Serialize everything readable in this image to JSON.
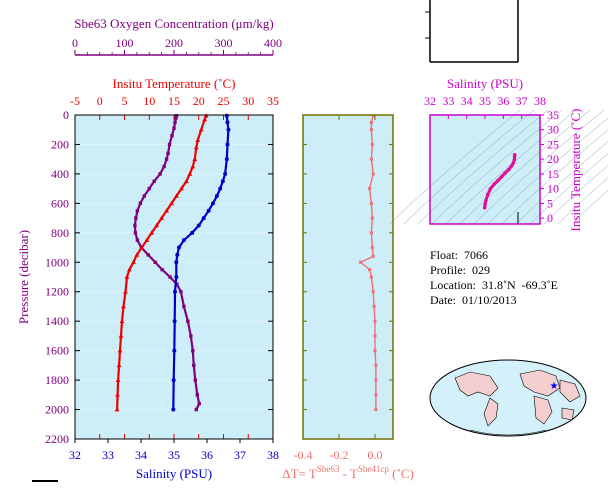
{
  "colors": {
    "oxygen": "#800080",
    "temperature": "#ee0000",
    "salinity": "#0000cc",
    "delta": "#f07070",
    "ts": "#e0109a",
    "panel_bg": "#cdeef8",
    "delta_axis": "#707000",
    "ts_axis": "#cc00cc"
  },
  "profile_axes": {
    "oxygen": {
      "title": "Sbe63 Oxygen Concentration (μm/kg)",
      "range": [
        0,
        400
      ],
      "ticks": [
        "0",
        "100",
        "200",
        "300",
        "400"
      ]
    },
    "temperature": {
      "title": "Insitu Temperature (˚C)",
      "range": [
        -5,
        35
      ],
      "ticks": [
        "-5",
        "0",
        "5",
        "10",
        "15",
        "20",
        "25",
        "30",
        "35"
      ]
    },
    "salinity": {
      "title": "Salinity (PSU)",
      "range": [
        32,
        38
      ],
      "ticks": [
        "32",
        "33",
        "34",
        "35",
        "36",
        "37",
        "38"
      ]
    },
    "pressure": {
      "title": "Pressure (decibar)",
      "range": [
        0,
        2200
      ],
      "ticks": [
        "0",
        "200",
        "400",
        "600",
        "800",
        "1000",
        "1200",
        "1400",
        "1600",
        "1800",
        "2000",
        "2200"
      ]
    }
  },
  "delta_axis": {
    "ticks": [
      "-0.4",
      "-0.2",
      "0.0"
    ],
    "range": [
      -0.4,
      0.1
    ],
    "label_prefix": "ΔT= T",
    "label_sup1": "Sbe63",
    "label_mid": " - T",
    "label_sup2": "Sbe41cp",
    "label_suffix": " (˚C)"
  },
  "ts_axis": {
    "salinity_title": "Salinity (PSU)",
    "salinity_range": [
      32,
      38
    ],
    "salinity_ticks": [
      "32",
      "33",
      "34",
      "35",
      "36",
      "37",
      "38"
    ],
    "temp_title": "Insitu Temperature (˚C)",
    "temp_range": [
      -2,
      35
    ],
    "temp_ticks": [
      "0",
      "5",
      "10",
      "15",
      "20",
      "25",
      "30",
      "35"
    ]
  },
  "info": {
    "float": "Float:  7066",
    "profile": "Profile:  029",
    "location": "Location:  31.8˚N  -69.3˚E",
    "date": "Date:  01/10/2013"
  },
  "chart_data": [
    {
      "type": "line",
      "ylabel": "Pressure (decibar)",
      "ylim": [
        0,
        2200
      ],
      "y_inverted": true,
      "series": [
        {
          "name": "Sbe63 Oxygen Concentration (μm/kg)",
          "x_axis": "oxygen",
          "points": [
            [
              205,
              5
            ],
            [
              204,
              20
            ],
            [
              202,
              50
            ],
            [
              200,
              90
            ],
            [
              196,
              140
            ],
            [
              191,
              200
            ],
            [
              188,
              260
            ],
            [
              185,
              300
            ],
            [
              180,
              350
            ],
            [
              172,
              400
            ],
            [
              160,
              450
            ],
            [
              150,
              500
            ],
            [
              140,
              550
            ],
            [
              132,
              600
            ],
            [
              126,
              650
            ],
            [
              123,
              700
            ],
            [
              121,
              750
            ],
            [
              122,
              800
            ],
            [
              126,
              850
            ],
            [
              134,
              900
            ],
            [
              148,
              950
            ],
            [
              162,
              1000
            ],
            [
              176,
              1050
            ],
            [
              192,
              1100
            ],
            [
              206,
              1150
            ],
            [
              214,
              1200
            ],
            [
              220,
              1300
            ],
            [
              228,
              1400
            ],
            [
              234,
              1500
            ],
            [
              238,
              1600
            ],
            [
              240,
              1700
            ],
            [
              243,
              1800
            ],
            [
              247,
              1900
            ],
            [
              251,
              1960
            ],
            [
              245,
              2000
            ]
          ]
        },
        {
          "name": "Insitu Temperature (˚C)",
          "x_axis": "temperature",
          "points": [
            [
              21.5,
              5
            ],
            [
              21.2,
              30
            ],
            [
              20.5,
              100
            ],
            [
              19.8,
              170
            ],
            [
              19.5,
              220
            ],
            [
              19.2,
              300
            ],
            [
              18.8,
              350
            ],
            [
              18.2,
              400
            ],
            [
              17.5,
              450
            ],
            [
              16.5,
              500
            ],
            [
              15.5,
              550
            ],
            [
              14.5,
              600
            ],
            [
              13.5,
              650
            ],
            [
              12.5,
              700
            ],
            [
              11.5,
              750
            ],
            [
              10.5,
              800
            ],
            [
              9.5,
              850
            ],
            [
              8.5,
              900
            ],
            [
              7.5,
              950
            ],
            [
              6.8,
              1000
            ],
            [
              6.0,
              1050
            ],
            [
              5.5,
              1100
            ],
            [
              5.2,
              1200
            ],
            [
              4.8,
              1300
            ],
            [
              4.5,
              1400
            ],
            [
              4.3,
              1500
            ],
            [
              4.1,
              1600
            ],
            [
              3.9,
              1700
            ],
            [
              3.7,
              1800
            ],
            [
              3.6,
              1900
            ],
            [
              3.5,
              2000
            ]
          ]
        },
        {
          "name": "Salinity (PSU)",
          "x_axis": "salinity",
          "points": [
            [
              36.6,
              5
            ],
            [
              36.62,
              50
            ],
            [
              36.65,
              100
            ],
            [
              36.62,
              200
            ],
            [
              36.6,
              300
            ],
            [
              36.55,
              400
            ],
            [
              36.48,
              450
            ],
            [
              36.4,
              500
            ],
            [
              36.3,
              550
            ],
            [
              36.18,
              600
            ],
            [
              36.05,
              650
            ],
            [
              35.9,
              700
            ],
            [
              35.75,
              750
            ],
            [
              35.55,
              800
            ],
            [
              35.3,
              850
            ],
            [
              35.15,
              900
            ],
            [
              35.1,
              950
            ],
            [
              35.07,
              1000
            ],
            [
              35.07,
              1100
            ],
            [
              35.03,
              1200
            ],
            [
              35.02,
              1400
            ],
            [
              35.01,
              1600
            ],
            [
              34.99,
              1800
            ],
            [
              34.98,
              2000
            ]
          ]
        }
      ]
    },
    {
      "type": "line",
      "xlabel": "ΔT= T Sbe63 - T Sbe41cp (˚C)",
      "xlim": [
        -0.4,
        0.1
      ],
      "ylim": [
        0,
        2200
      ],
      "series": [
        {
          "name": "ΔT",
          "points": [
            [
              -0.01,
              5
            ],
            [
              -0.02,
              50
            ],
            [
              -0.02,
              100
            ],
            [
              -0.015,
              200
            ],
            [
              -0.02,
              300
            ],
            [
              -0.01,
              400
            ],
            [
              -0.03,
              500
            ],
            [
              -0.02,
              600
            ],
            [
              -0.015,
              700
            ],
            [
              -0.02,
              800
            ],
            [
              -0.015,
              900
            ],
            [
              -0.01,
              960
            ],
            [
              -0.08,
              1000
            ],
            [
              -0.03,
              1050
            ],
            [
              -0.02,
              1100
            ],
            [
              -0.01,
              1200
            ],
            [
              -0.005,
              1300
            ],
            [
              0.0,
              1400
            ],
            [
              0.0,
              1500
            ],
            [
              0.0,
              1600
            ],
            [
              0.005,
              1700
            ],
            [
              0.005,
              1800
            ],
            [
              0.005,
              1900
            ],
            [
              0.005,
              2000
            ]
          ]
        }
      ]
    },
    {
      "type": "line",
      "xlabel": "Salinity (PSU)",
      "ylabel": "Insitu Temperature (˚C)",
      "xlim": [
        32,
        38
      ],
      "ylim": [
        -2,
        35
      ],
      "series": [
        {
          "name": "T-S",
          "points": [
            [
              34.98,
              3.5
            ],
            [
              35.0,
              4.5
            ],
            [
              35.05,
              6
            ],
            [
              35.15,
              8
            ],
            [
              35.3,
              10
            ],
            [
              35.5,
              11.5
            ],
            [
              35.7,
              12.7
            ],
            [
              35.9,
              14
            ],
            [
              36.1,
              15.3
            ],
            [
              36.3,
              16.5
            ],
            [
              36.45,
              17.7
            ],
            [
              36.55,
              18.8
            ],
            [
              36.6,
              19.8
            ],
            [
              36.62,
              21
            ],
            [
              36.62,
              21.5
            ]
          ]
        }
      ]
    }
  ]
}
